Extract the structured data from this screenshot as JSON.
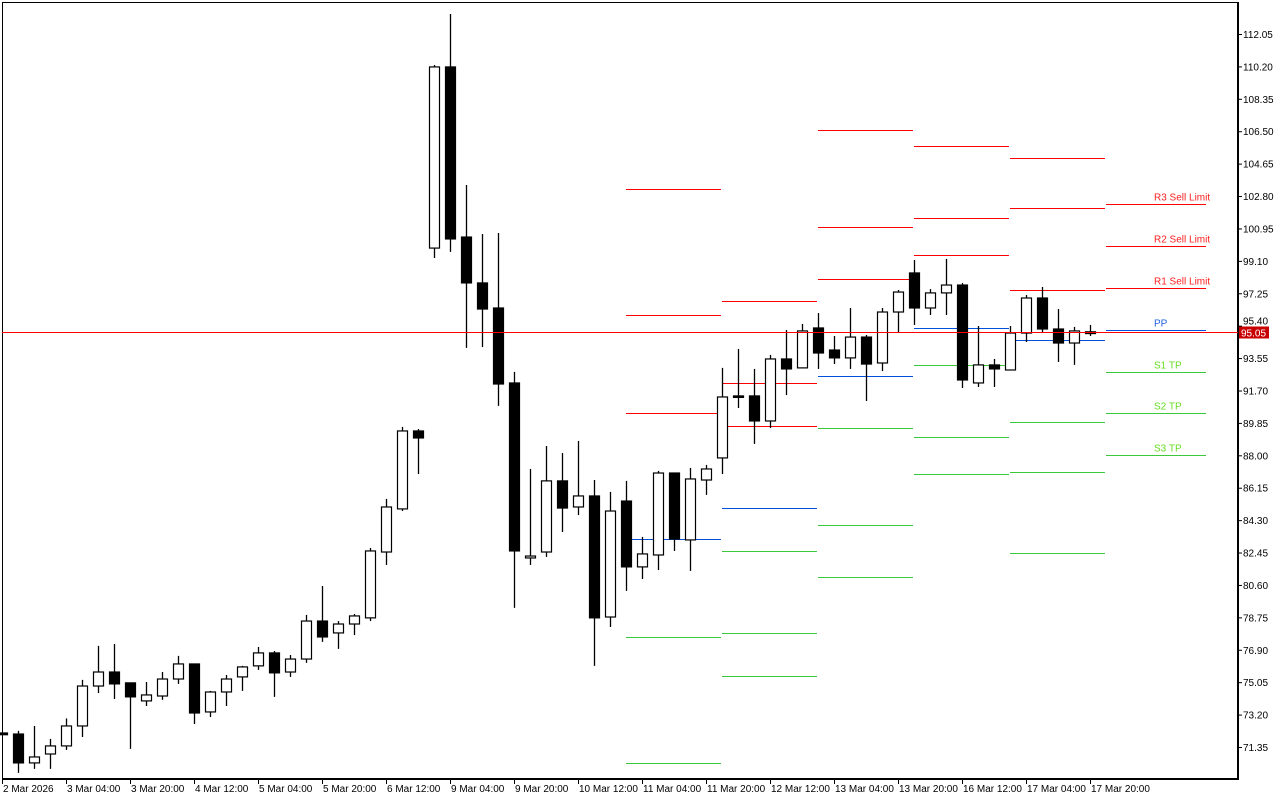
{
  "chart_data": {
    "type": "candlestick",
    "title": "",
    "ylim": [
      69.5,
      114.0
    ],
    "grid": false,
    "y_ticks": [
      "112.05",
      "110.20",
      "108.35",
      "106.50",
      "104.65",
      "102.80",
      "100.95",
      "99.10",
      "97.25",
      "95.40",
      "93.55",
      "91.70",
      "89.85",
      "88.00",
      "86.15",
      "84.30",
      "82.45",
      "80.60",
      "78.75",
      "76.90",
      "75.05",
      "73.20",
      "71.35"
    ],
    "x_labels": [
      "2 Mar 2026",
      "3 Mar 04:00",
      "3 Mar 20:00",
      "4 Mar 12:00",
      "5 Mar 04:00",
      "5 Mar 20:00",
      "6 Mar 12:00",
      "9 Mar 04:00",
      "9 Mar 20:00",
      "10 Mar 12:00",
      "11 Mar 04:00",
      "11 Mar 20:00",
      "12 Mar 12:00",
      "13 Mar 04:00",
      "13 Mar 20:00",
      "16 Mar 12:00",
      "17 Mar 04:00",
      "17 Mar 20:00"
    ],
    "candles": [
      [
        72.15,
        72.15,
        72.05,
        72.05
      ],
      [
        72.09,
        72.27,
        69.87,
        70.44
      ],
      [
        70.44,
        72.55,
        70.1,
        70.78
      ],
      [
        70.95,
        71.81,
        70.1,
        71.41
      ],
      [
        71.41,
        72.98,
        71.18,
        72.55
      ],
      [
        72.55,
        75.18,
        71.92,
        74.83
      ],
      [
        74.83,
        77.12,
        74.43,
        75.63
      ],
      [
        75.63,
        77.23,
        74.09,
        74.95
      ],
      [
        75.01,
        75.01,
        71.24,
        74.21
      ],
      [
        73.98,
        75.06,
        73.69,
        74.32
      ],
      [
        74.26,
        75.63,
        74.04,
        75.23
      ],
      [
        75.23,
        76.55,
        74.95,
        76.09
      ],
      [
        76.09,
        76.09,
        72.66,
        73.29
      ],
      [
        73.35,
        74.55,
        73.06,
        74.49
      ],
      [
        74.49,
        75.46,
        73.69,
        75.23
      ],
      [
        75.35,
        75.98,
        74.55,
        75.92
      ],
      [
        75.98,
        77.06,
        75.75,
        76.72
      ],
      [
        76.72,
        76.83,
        74.21,
        75.58
      ],
      [
        75.63,
        76.6,
        75.35,
        76.37
      ],
      [
        76.37,
        78.89,
        76.15,
        78.54
      ],
      [
        78.54,
        80.54,
        77.35,
        77.63
      ],
      [
        77.86,
        78.54,
        76.95,
        78.37
      ],
      [
        78.37,
        78.94,
        77.74,
        78.83
      ],
      [
        78.72,
        82.71,
        78.54,
        82.54
      ],
      [
        82.48,
        85.51,
        81.74,
        85.05
      ],
      [
        84.94,
        89.62,
        84.82,
        89.39
      ],
      [
        89.39,
        89.5,
        86.93,
        88.99
      ],
      [
        99.83,
        110.28,
        99.26,
        110.17
      ],
      [
        110.17,
        113.19,
        99.61,
        100.35
      ],
      [
        100.46,
        103.43,
        94.13,
        97.84
      ],
      [
        97.84,
        100.63,
        94.18,
        96.35
      ],
      [
        96.41,
        100.69,
        90.82,
        92.07
      ],
      [
        92.13,
        92.76,
        79.29,
        82.54
      ],
      [
        82.14,
        87.22,
        81.74,
        82.25
      ],
      [
        82.48,
        88.53,
        82.2,
        86.54
      ],
      [
        86.54,
        88.13,
        83.62,
        84.99
      ],
      [
        85.05,
        88.82,
        84.59,
        85.68
      ],
      [
        85.68,
        86.59,
        75.98,
        78.72
      ],
      [
        78.77,
        85.91,
        78.2,
        84.82
      ],
      [
        85.39,
        86.54,
        80.26,
        81.63
      ],
      [
        81.63,
        83.34,
        80.94,
        82.37
      ],
      [
        82.31,
        87.11,
        81.45,
        86.99
      ],
      [
        86.99,
        86.99,
        82.54,
        83.22
      ],
      [
        83.17,
        87.28,
        81.4,
        86.65
      ],
      [
        86.59,
        87.45,
        85.74,
        87.22
      ],
      [
        87.85,
        92.99,
        86.93,
        91.33
      ],
      [
        91.39,
        94.07,
        90.7,
        91.33
      ],
      [
        91.39,
        92.93,
        88.65,
        89.96
      ],
      [
        89.96,
        93.73,
        89.56,
        93.5
      ],
      [
        93.5,
        95.15,
        91.44,
        92.93
      ],
      [
        92.99,
        95.5,
        92.99,
        95.1
      ],
      [
        95.27,
        96.12,
        92.93,
        93.84
      ],
      [
        94.01,
        94.81,
        93.21,
        93.56
      ],
      [
        93.56,
        96.41,
        92.93,
        94.75
      ],
      [
        94.75,
        94.87,
        91.1,
        93.21
      ],
      [
        93.27,
        96.41,
        92.81,
        96.18
      ],
      [
        96.18,
        97.44,
        95.04,
        97.32
      ],
      [
        98.41,
        99.15,
        95.44,
        96.41
      ],
      [
        96.41,
        97.49,
        96.01,
        97.27
      ],
      [
        97.27,
        99.21,
        96.01,
        97.72
      ],
      [
        97.72,
        97.84,
        91.84,
        92.3
      ],
      [
        92.13,
        95.38,
        91.9,
        93.16
      ],
      [
        93.16,
        93.5,
        91.9,
        92.93
      ],
      [
        92.87,
        95.38,
        92.87,
        94.98
      ],
      [
        94.98,
        97.15,
        94.47,
        96.98
      ],
      [
        96.98,
        97.61,
        94.98,
        95.21
      ],
      [
        95.21,
        96.35,
        93.33,
        94.41
      ],
      [
        94.41,
        95.33,
        93.16,
        95.1
      ],
      [
        94.95,
        95.44,
        94.81,
        95.05
      ]
    ],
    "candle_fields": [
      "open",
      "high",
      "low",
      "close"
    ],
    "bullish_color": "#ffffff",
    "bearish_color": "#000000",
    "current_price": "95.05",
    "current_price_color": "#ff0000",
    "pivot_levels": [
      {
        "R3": 103.2,
        "R2": 96.01,
        "R1": 90.42,
        "PP": 83.22,
        "S1": 77.63,
        "S2": 70.44,
        "S3": null
      },
      {
        "R3": 96.81,
        "R2": 92.13,
        "R1": 89.67,
        "PP": 84.99,
        "S1": 82.54,
        "S2": 77.86,
        "S3": 75.4
      },
      {
        "R3": 106.57,
        "R2": 101.03,
        "R1": 98.06,
        "PP": 92.53,
        "S1": 89.56,
        "S2": 84.02,
        "S3": 81.05
      },
      {
        "R3": 105.66,
        "R2": 101.55,
        "R1": 99.43,
        "PP": 95.27,
        "S1": 93.16,
        "S2": 89.05,
        "S3": 86.93
      },
      {
        "R3": 104.97,
        "R2": 102.12,
        "R1": 97.44,
        "PP": 94.58,
        "S1": 89.9,
        "S2": 87.05,
        "S3": 82.42
      },
      {
        "R3": 102.35,
        "R2": 99.95,
        "R1": 97.55,
        "PP": 95.15,
        "S1": 92.76,
        "S2": 90.42,
        "S3": 88.02
      }
    ],
    "level_colors": {
      "R3": "#ff0000",
      "R2": "#ff0000",
      "R1": "#ff0000",
      "PP": "#0050dc",
      "S1": "#3cc83c",
      "S2": "#3cc83c",
      "S3": "#3cc83c"
    },
    "level_labels": {
      "R3": "R3 Sell Limit",
      "R2": "R2 Sell Limit",
      "R1": "R1 Sell Limit",
      "PP": "PP",
      "S1": "S1 TP",
      "S2": "S2 TP",
      "S3": "S3 TP"
    },
    "label_colors": {
      "R3": "#ff2020",
      "R2": "#ff2020",
      "R1": "#ff2020",
      "PP": "#2060e0",
      "S1": "#66dd22",
      "S2": "#66dd22",
      "S3": "#66dd22"
    }
  }
}
